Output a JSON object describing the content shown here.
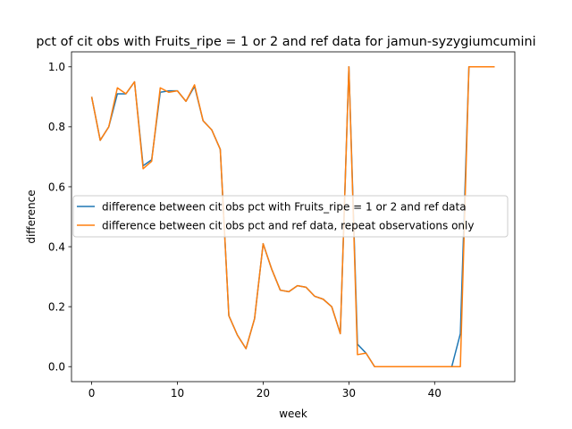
{
  "chart_data": {
    "type": "line",
    "title": "pct of cit obs with Fruits_ripe = 1 or 2 and ref data for jamun-syzygiumcumini",
    "xlabel": "week",
    "ylabel": "difference",
    "xlim": [
      -2.35,
      49.35
    ],
    "ylim": [
      -0.05,
      1.05
    ],
    "xticks": [
      0,
      10,
      20,
      30,
      40
    ],
    "yticks": [
      0.0,
      0.2,
      0.4,
      0.6,
      0.8,
      1.0
    ],
    "ytick_labels": [
      "0.0",
      "0.2",
      "0.4",
      "0.6",
      "0.8",
      "1.0"
    ],
    "grid": false,
    "legend_position": "center-left",
    "series": [
      {
        "name": "difference between cit obs pct with Fruits_ripe = 1 or 2 and ref data",
        "color": "#1f77b4",
        "x": [
          0,
          1,
          2,
          3,
          4,
          5,
          6,
          7,
          8,
          9,
          10,
          11,
          12,
          13,
          14,
          15,
          16,
          17,
          18,
          19,
          20,
          21,
          22,
          23,
          24,
          25,
          26,
          27,
          28,
          29,
          30,
          31,
          32,
          33,
          34,
          35,
          36,
          37,
          38,
          39,
          40,
          41,
          42,
          43,
          44,
          45,
          46,
          47
        ],
        "y": [
          0.9,
          0.755,
          0.8,
          0.91,
          0.91,
          0.95,
          0.67,
          0.69,
          0.915,
          0.92,
          0.92,
          0.885,
          0.935,
          0.82,
          0.79,
          0.725,
          0.17,
          0.105,
          0.06,
          0.16,
          0.41,
          0.325,
          0.255,
          0.25,
          0.27,
          0.265,
          0.235,
          0.225,
          0.2,
          0.11,
          1.0,
          0.075,
          0.045,
          0.0,
          0.0,
          0.0,
          0.0,
          0.0,
          0.0,
          0.0,
          0.0,
          0.0,
          0.0,
          0.11,
          1.0,
          1.0,
          1.0,
          1.0
        ]
      },
      {
        "name": "difference between cit obs pct and ref data, repeat observations only",
        "color": "#ff7f0e",
        "x": [
          0,
          1,
          2,
          3,
          4,
          5,
          6,
          7,
          8,
          9,
          10,
          11,
          12,
          13,
          14,
          15,
          16,
          17,
          18,
          19,
          20,
          21,
          22,
          23,
          24,
          25,
          26,
          27,
          28,
          29,
          30,
          31,
          32,
          33,
          34,
          35,
          36,
          37,
          38,
          39,
          40,
          41,
          42,
          43,
          44,
          45,
          46,
          47
        ],
        "y": [
          0.9,
          0.755,
          0.8,
          0.93,
          0.91,
          0.95,
          0.66,
          0.685,
          0.93,
          0.915,
          0.92,
          0.885,
          0.94,
          0.82,
          0.79,
          0.725,
          0.17,
          0.105,
          0.06,
          0.16,
          0.41,
          0.325,
          0.255,
          0.25,
          0.27,
          0.265,
          0.235,
          0.225,
          0.2,
          0.11,
          1.0,
          0.04,
          0.045,
          0.0,
          0.0,
          0.0,
          0.0,
          0.0,
          0.0,
          0.0,
          0.0,
          0.0,
          0.0,
          0.0,
          1.0,
          1.0,
          1.0,
          1.0
        ]
      }
    ]
  }
}
